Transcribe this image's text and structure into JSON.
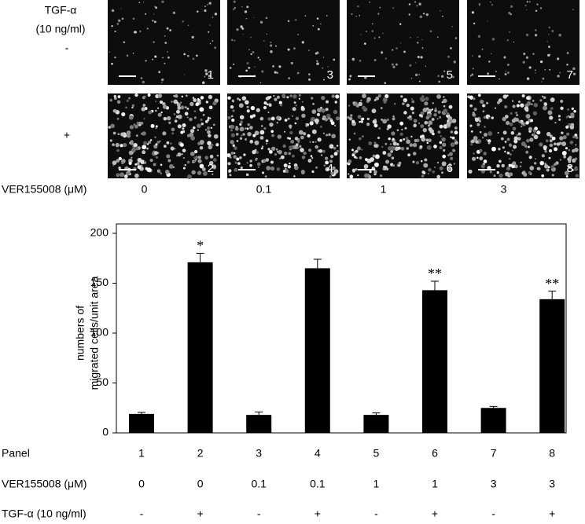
{
  "micrographs": {
    "row_header": [
      "TGF-α",
      "(10 ng/ml)"
    ],
    "rows": [
      {
        "label": "-",
        "panels": [
          "1",
          "3",
          "5",
          "7"
        ]
      },
      {
        "label": "+",
        "panels": [
          "2",
          "4",
          "6",
          "8"
        ]
      }
    ],
    "column_label": "VER155008 (μM)",
    "columns": [
      "0",
      "0.1",
      "1",
      "3"
    ]
  },
  "chart_data": {
    "type": "bar",
    "ylabel": [
      "numbers of",
      "migrated cells/unit area"
    ],
    "categories_label": "Panel",
    "categories": [
      "1",
      "2",
      "3",
      "4",
      "5",
      "6",
      "7",
      "8"
    ],
    "values": [
      19,
      171,
      18,
      165,
      18,
      143,
      25,
      134
    ],
    "errors": [
      1.5,
      9,
      3,
      9,
      2,
      9,
      1.5,
      8
    ],
    "significance": [
      null,
      "*",
      null,
      null,
      null,
      "**",
      null,
      "**"
    ],
    "color": "#000000",
    "ylim": [
      0,
      200
    ],
    "yticks": [
      0,
      50,
      100,
      150,
      200
    ],
    "extra_rows": [
      {
        "label": "VER155008 (μM)",
        "cells": [
          "0",
          "0",
          "0.1",
          "0.1",
          "1",
          "1",
          "3",
          "3"
        ]
      },
      {
        "label": "TGF-α (10 ng/ml)",
        "cells": [
          "-",
          "+",
          "-",
          "+",
          "-",
          "+",
          "-",
          "+"
        ]
      }
    ]
  }
}
